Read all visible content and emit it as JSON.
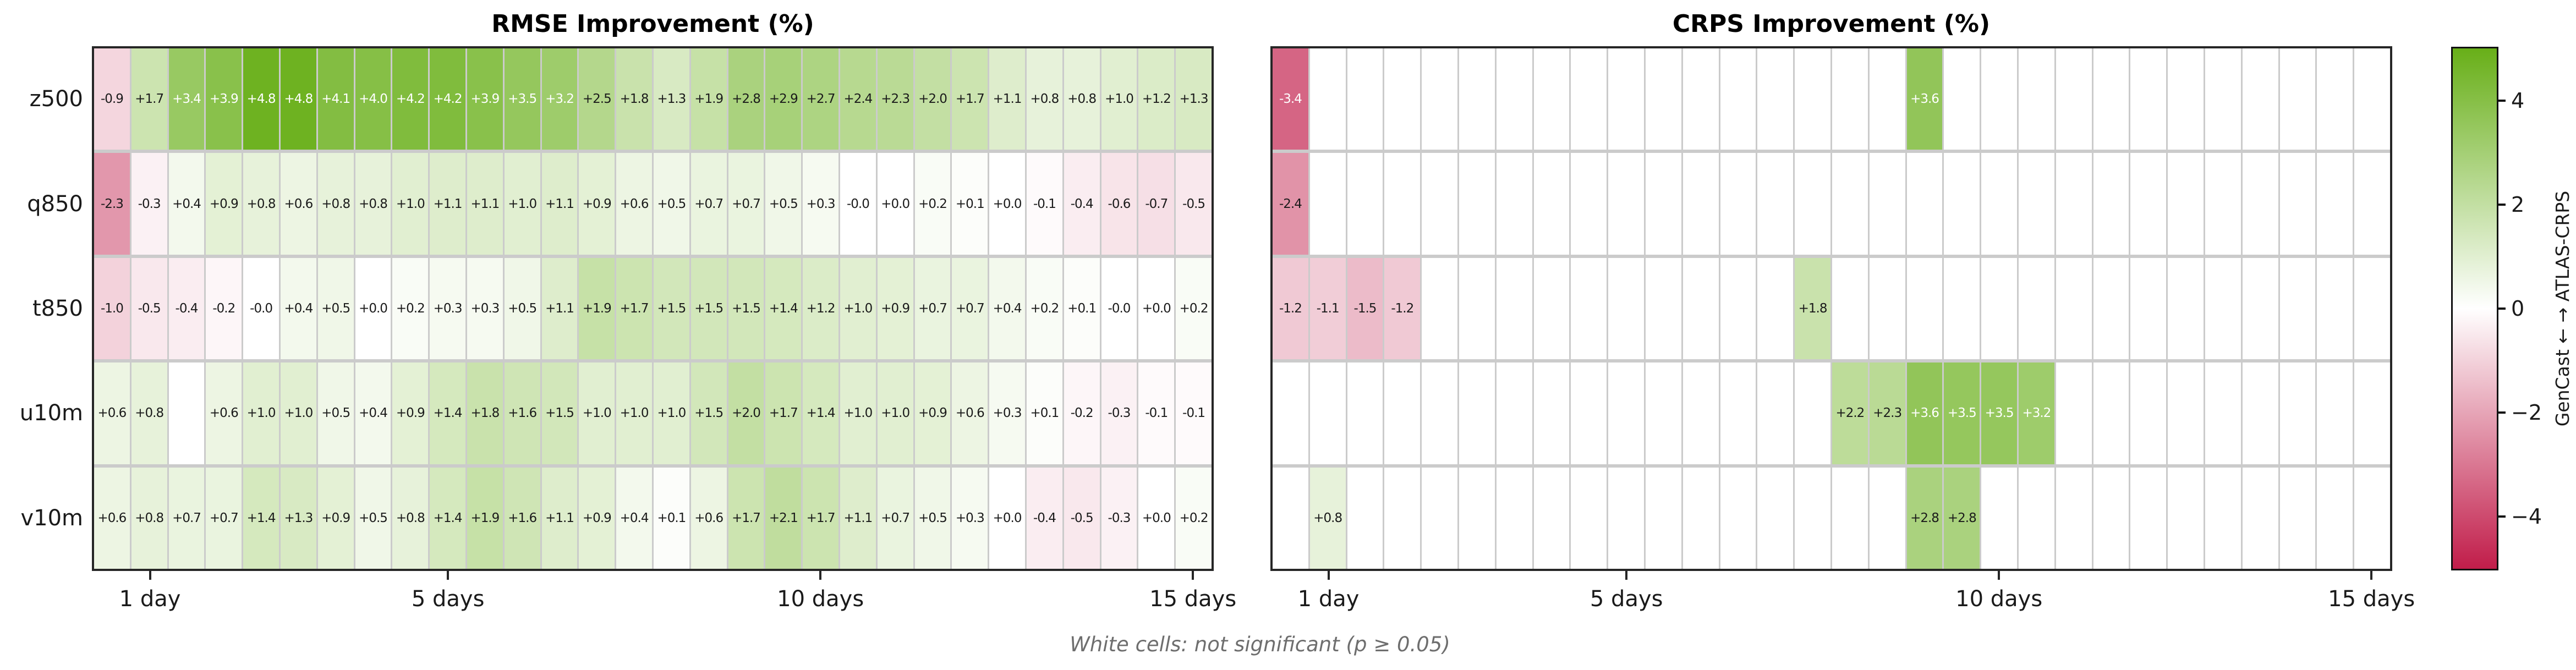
{
  "chart_data": {
    "type": "heatmap",
    "rows": [
      "z500",
      "q850",
      "t850",
      "u10m",
      "v10m"
    ],
    "n_cols": 30,
    "x_tick_labels": [
      "1 day",
      "5 days",
      "10 days",
      "15 days"
    ],
    "x_tick_cols": [
      2,
      10,
      20,
      30
    ],
    "caption": "White cells: not significant (p ≥ 0.05)",
    "panels": [
      {
        "title": "RMSE Improvement (%)",
        "values": [
          [
            "-0.9",
            "+1.7",
            "+3.4",
            "+3.9",
            "+4.8",
            "+4.8",
            "+4.1",
            "+4.0",
            "+4.2",
            "+4.2",
            "+3.9",
            "+3.5",
            "+3.2",
            "+2.5",
            "+1.8",
            "+1.3",
            "+1.9",
            "+2.8",
            "+2.9",
            "+2.7",
            "+2.4",
            "+2.3",
            "+2.0",
            "+1.7",
            "+1.1",
            "+0.8",
            "+0.8",
            "+1.0",
            "+1.2",
            "+1.3"
          ],
          [
            "-2.3",
            "-0.3",
            "+0.4",
            "+0.9",
            "+0.8",
            "+0.6",
            "+0.8",
            "+0.8",
            "+1.0",
            "+1.1",
            "+1.1",
            "+1.0",
            "+1.1",
            "+0.9",
            "+0.6",
            "+0.5",
            "+0.7",
            "+0.7",
            "+0.5",
            "+0.3",
            "-0.0",
            "+0.0",
            "+0.2",
            "+0.1",
            "+0.0",
            "-0.1",
            "-0.4",
            "-0.6",
            "-0.7",
            "-0.5"
          ],
          [
            "-1.0",
            "-0.5",
            "-0.4",
            "-0.2",
            "-0.0",
            "+0.4",
            "+0.5",
            "+0.0",
            "+0.2",
            "+0.3",
            "+0.3",
            "+0.5",
            "+1.1",
            "+1.9",
            "+1.7",
            "+1.5",
            "+1.5",
            "+1.5",
            "+1.4",
            "+1.2",
            "+1.0",
            "+0.9",
            "+0.7",
            "+0.7",
            "+0.4",
            "+0.2",
            "+0.1",
            "-0.0",
            "+0.0",
            "+0.2"
          ],
          [
            "+0.6",
            "+0.8",
            null,
            "+0.6",
            "+1.0",
            "+1.0",
            "+0.5",
            "+0.4",
            "+0.9",
            "+1.4",
            "+1.8",
            "+1.6",
            "+1.5",
            "+1.0",
            "+1.0",
            "+1.0",
            "+1.5",
            "+2.0",
            "+1.7",
            "+1.4",
            "+1.0",
            "+1.0",
            "+0.9",
            "+0.6",
            "+0.3",
            "+0.1",
            "-0.2",
            "-0.3",
            "-0.1",
            "-0.1"
          ],
          [
            "+0.6",
            "+0.8",
            "+0.7",
            "+0.7",
            "+1.4",
            "+1.3",
            "+0.9",
            "+0.5",
            "+0.8",
            "+1.4",
            "+1.9",
            "+1.6",
            "+1.1",
            "+0.9",
            "+0.4",
            "+0.1",
            "+0.6",
            "+1.7",
            "+2.1",
            "+1.7",
            "+1.1",
            "+0.7",
            "+0.5",
            "+0.3",
            "+0.0",
            "-0.4",
            "-0.5",
            "-0.3",
            "+0.0",
            "+0.2"
          ]
        ]
      },
      {
        "title": "CRPS Improvement (%)",
        "values": [
          [
            "-3.4",
            null,
            null,
            null,
            null,
            null,
            null,
            null,
            null,
            null,
            null,
            null,
            null,
            null,
            null,
            null,
            null,
            "+3.6",
            null,
            null,
            null,
            null,
            null,
            null,
            null,
            null,
            null,
            null,
            null,
            null
          ],
          [
            "-2.4",
            null,
            null,
            null,
            null,
            null,
            null,
            null,
            null,
            null,
            null,
            null,
            null,
            null,
            null,
            null,
            null,
            null,
            null,
            null,
            null,
            null,
            null,
            null,
            null,
            null,
            null,
            null,
            null,
            null
          ],
          [
            "-1.2",
            "-1.1",
            "-1.5",
            "-1.2",
            null,
            null,
            null,
            null,
            null,
            null,
            null,
            null,
            null,
            null,
            "+1.8",
            null,
            null,
            null,
            null,
            null,
            null,
            null,
            null,
            null,
            null,
            null,
            null,
            null,
            null,
            null
          ],
          [
            null,
            null,
            null,
            null,
            null,
            null,
            null,
            null,
            null,
            null,
            null,
            null,
            null,
            null,
            null,
            "+2.2",
            "+2.3",
            "+3.6",
            "+3.5",
            "+3.5",
            "+3.2",
            null,
            null,
            null,
            null,
            null,
            null,
            null,
            null,
            null
          ],
          [
            null,
            "+0.8",
            null,
            null,
            null,
            null,
            null,
            null,
            null,
            null,
            null,
            null,
            null,
            null,
            null,
            null,
            null,
            "+2.8",
            "+2.8",
            null,
            null,
            null,
            null,
            null,
            null,
            null,
            null,
            null,
            null,
            null
          ]
        ]
      }
    ],
    "colorbar": {
      "label": "GenCast ← → ATLAS-CRPS",
      "tick_labels": [
        "4",
        "2",
        "0",
        "−2",
        "−4"
      ],
      "tick_values": [
        4,
        2,
        0,
        -2,
        -4
      ],
      "vmin": -5,
      "vmax": 5,
      "positive_color": "#68af18",
      "negative_color": "#c11d4a",
      "neutral_color": "#ffffff",
      "white_text_min_abs": 3.0
    }
  }
}
